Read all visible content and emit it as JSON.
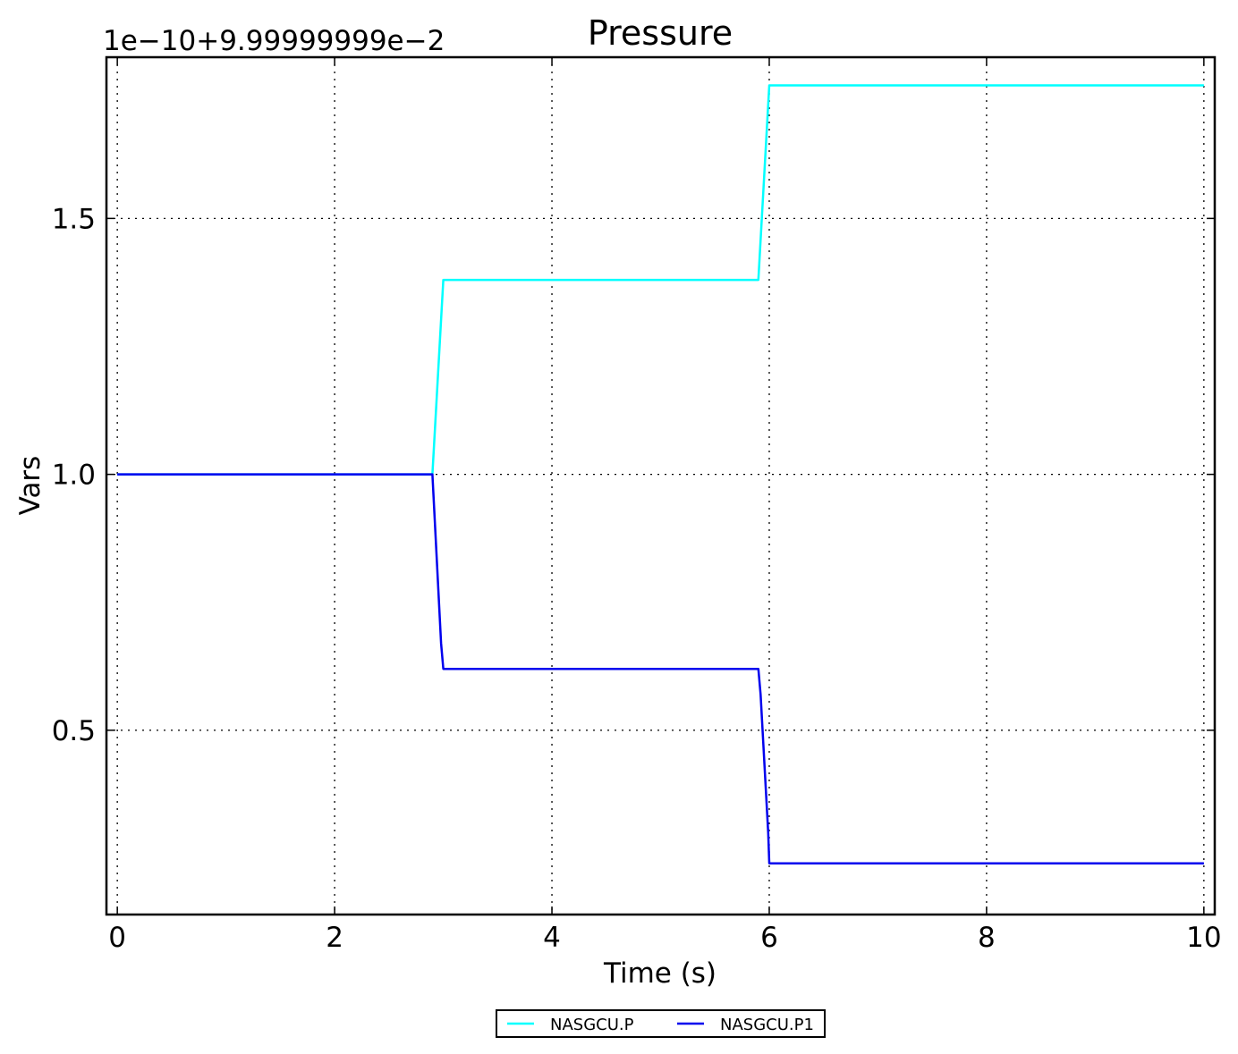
{
  "chart_data": {
    "type": "line",
    "title": "Pressure",
    "xlabel": "Time (s)",
    "ylabel": "Vars",
    "y_offset_label": "1e−10+9.99999999e−2",
    "xlim": [
      -0.1,
      10.1
    ],
    "ylim": [
      0.14,
      1.815
    ],
    "x_ticks": [
      0,
      2,
      4,
      6,
      8,
      10
    ],
    "x_tick_labels": [
      "0",
      "2",
      "4",
      "6",
      "8",
      "10"
    ],
    "y_ticks": [
      0.5,
      1.0,
      1.5
    ],
    "y_tick_labels": [
      "0.5",
      "1.0",
      "1.5"
    ],
    "grid": true,
    "legend_position": "bottom-center",
    "series": [
      {
        "name": "NASGCU.P",
        "color": "#00ffff",
        "x": [
          0,
          2.9,
          3.0,
          5.9,
          6.0,
          10
        ],
        "y": [
          1.0,
          1.0,
          1.38,
          1.38,
          1.76,
          1.76
        ]
      },
      {
        "name": "NASGCU.P1",
        "color": "#0000ee",
        "x": [
          0,
          2.9,
          2.98,
          3.0,
          5.9,
          5.92,
          5.99,
          6.0,
          10
        ],
        "y": [
          1.0,
          1.0,
          0.67,
          0.62,
          0.62,
          0.57,
          0.3,
          0.24,
          0.24
        ]
      }
    ]
  }
}
